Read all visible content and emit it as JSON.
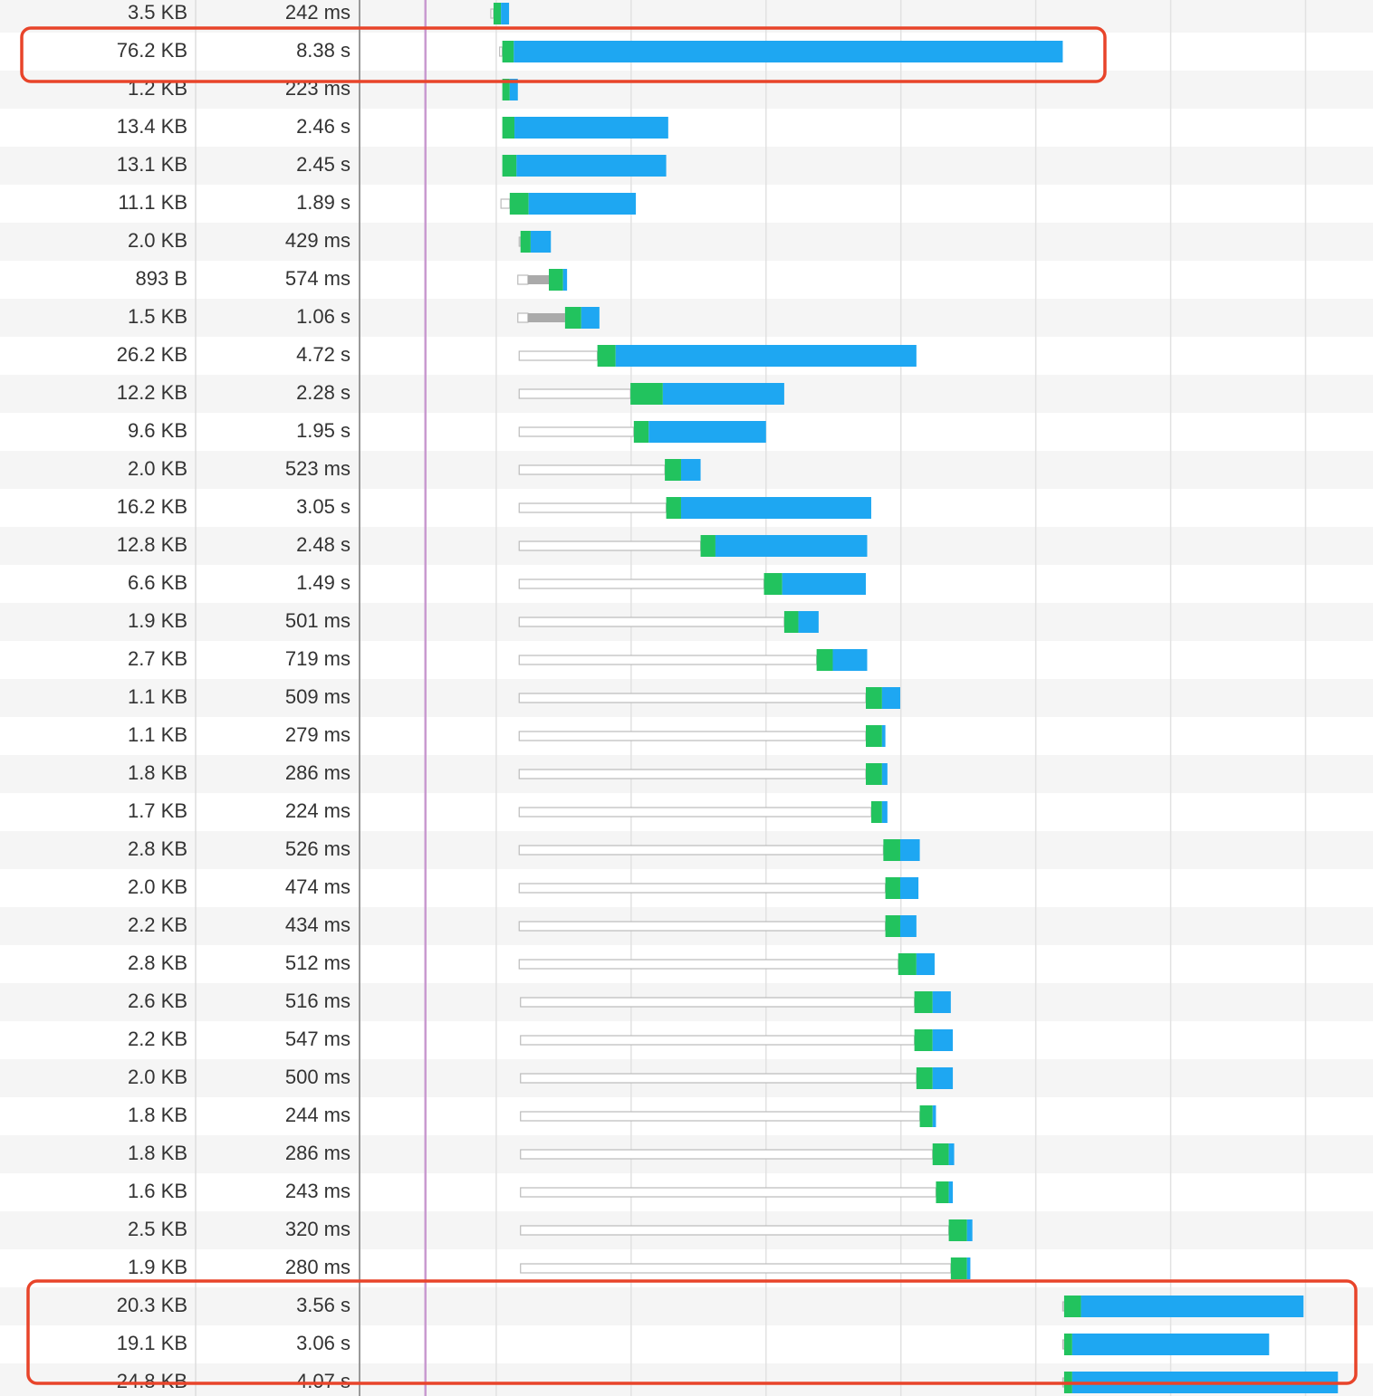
{
  "rows": [
    {
      "size": "3.5 KB",
      "time": "242 ms",
      "start": 1.92,
      "green": 1.96,
      "blue": 2.07,
      "end": 2.19
    },
    {
      "size": "76.2 KB",
      "time": "8.38 s",
      "start": 2.05,
      "green": 2.09,
      "blue": 2.26,
      "end": 10.4
    },
    {
      "size": "1.2 KB",
      "time": "223 ms",
      "start": 2.09,
      "green": 2.09,
      "blue": 2.2,
      "end": 2.32
    },
    {
      "size": "13.4 KB",
      "time": "2.46 s",
      "start": 2.09,
      "green": 2.09,
      "blue": 2.27,
      "end": 4.55
    },
    {
      "size": "13.1 KB",
      "time": "2.45 s",
      "start": 2.09,
      "green": 2.09,
      "blue": 2.3,
      "end": 4.52
    },
    {
      "size": "11.1 KB",
      "time": "1.89 s",
      "start": 2.07,
      "green": 2.2,
      "blue": 2.48,
      "end": 4.07
    },
    {
      "size": "2.0 KB",
      "time": "429 ms",
      "start": 2.34,
      "green": 2.36,
      "blue": 2.51,
      "end": 2.81
    },
    {
      "size": "893 B",
      "time": "574 ms",
      "start": 2.32,
      "stall": 2.47,
      "green": 2.78,
      "blue": 2.99,
      "end": 3.05
    },
    {
      "size": "1.5 KB",
      "time": "1.06 s",
      "start": 2.32,
      "stall": 2.47,
      "green": 3.02,
      "blue": 3.26,
      "end": 3.53
    },
    {
      "size": "26.2 KB",
      "time": "4.72 s",
      "start": 2.34,
      "green": 3.5,
      "blue": 3.77,
      "end": 8.23
    },
    {
      "size": "12.2 KB",
      "time": "2.28 s",
      "start": 2.34,
      "green": 3.99,
      "blue": 4.47,
      "end": 6.27
    },
    {
      "size": "9.6 KB",
      "time": "1.95 s",
      "start": 2.34,
      "green": 4.04,
      "blue": 4.26,
      "end": 6.0
    },
    {
      "size": "2.0 KB",
      "time": "523 ms",
      "start": 2.34,
      "green": 4.5,
      "blue": 4.74,
      "end": 5.03
    },
    {
      "size": "16.2 KB",
      "time": "3.05 s",
      "start": 2.34,
      "green": 4.52,
      "blue": 4.74,
      "end": 7.56
    },
    {
      "size": "12.8 KB",
      "time": "2.48 s",
      "start": 2.34,
      "green": 5.03,
      "blue": 5.25,
      "end": 7.5
    },
    {
      "size": "6.6 KB",
      "time": "1.49 s",
      "start": 2.34,
      "green": 5.97,
      "blue": 6.24,
      "end": 7.48
    },
    {
      "size": "1.9 KB",
      "time": "501 ms",
      "start": 2.34,
      "green": 6.27,
      "blue": 6.48,
      "end": 6.78
    },
    {
      "size": "2.7 KB",
      "time": "719 ms",
      "start": 2.34,
      "green": 6.75,
      "blue": 6.99,
      "end": 7.5
    },
    {
      "size": "1.1 KB",
      "time": "509 ms",
      "start": 2.34,
      "green": 7.48,
      "blue": 7.72,
      "end": 7.99
    },
    {
      "size": "1.1 KB",
      "time": "279 ms",
      "start": 2.34,
      "green": 7.48,
      "blue": 7.72,
      "end": 7.77
    },
    {
      "size": "1.8 KB",
      "time": "286 ms",
      "start": 2.34,
      "green": 7.48,
      "blue": 7.72,
      "end": 7.8
    },
    {
      "size": "1.7 KB",
      "time": "224 ms",
      "start": 2.34,
      "green": 7.56,
      "blue": 7.72,
      "end": 7.8
    },
    {
      "size": "2.8 KB",
      "time": "526 ms",
      "start": 2.34,
      "green": 7.74,
      "blue": 7.99,
      "end": 8.28
    },
    {
      "size": "2.0 KB",
      "time": "474 ms",
      "start": 2.34,
      "green": 7.77,
      "blue": 7.99,
      "end": 8.26
    },
    {
      "size": "2.2 KB",
      "time": "434 ms",
      "start": 2.34,
      "green": 7.77,
      "blue": 7.99,
      "end": 8.23
    },
    {
      "size": "2.8 KB",
      "time": "512 ms",
      "start": 2.34,
      "green": 7.96,
      "blue": 8.23,
      "end": 8.5
    },
    {
      "size": "2.6 KB",
      "time": "516 ms",
      "start": 2.36,
      "green": 8.2,
      "blue": 8.47,
      "end": 8.74
    },
    {
      "size": "2.2 KB",
      "time": "547 ms",
      "start": 2.36,
      "green": 8.2,
      "blue": 8.47,
      "end": 8.77
    },
    {
      "size": "2.0 KB",
      "time": "500 ms",
      "start": 2.36,
      "green": 8.23,
      "blue": 8.47,
      "end": 8.77
    },
    {
      "size": "1.8 KB",
      "time": "244 ms",
      "start": 2.36,
      "green": 8.28,
      "blue": 8.47,
      "end": 8.52
    },
    {
      "size": "1.8 KB",
      "time": "286 ms",
      "start": 2.36,
      "green": 8.47,
      "blue": 8.71,
      "end": 8.79
    },
    {
      "size": "1.6 KB",
      "time": "243 ms",
      "start": 2.36,
      "green": 8.52,
      "blue": 8.71,
      "end": 8.77
    },
    {
      "size": "2.5 KB",
      "time": "320 ms",
      "start": 2.36,
      "green": 8.71,
      "blue": 8.98,
      "end": 9.06
    },
    {
      "size": "1.9 KB",
      "time": "280 ms",
      "start": 2.36,
      "green": 8.74,
      "blue": 8.98,
      "end": 9.03
    },
    {
      "size": "20.3 KB",
      "time": "3.56 s",
      "start": 10.4,
      "green": 10.42,
      "blue": 10.67,
      "end": 13.97
    },
    {
      "size": "19.1 KB",
      "time": "3.06 s",
      "start": 10.4,
      "green": 10.42,
      "blue": 10.54,
      "end": 13.46
    },
    {
      "size": "24.8 KB",
      "time": "4.07 s",
      "start": 10.4,
      "green": 10.42,
      "blue": 10.54,
      "end": 14.48
    }
  ],
  "timeline": {
    "range": [
      0,
      15
    ],
    "gridlines": [
      2,
      4,
      6,
      8,
      10,
      12,
      14
    ],
    "dom_content_loaded": 0.95
  }
}
